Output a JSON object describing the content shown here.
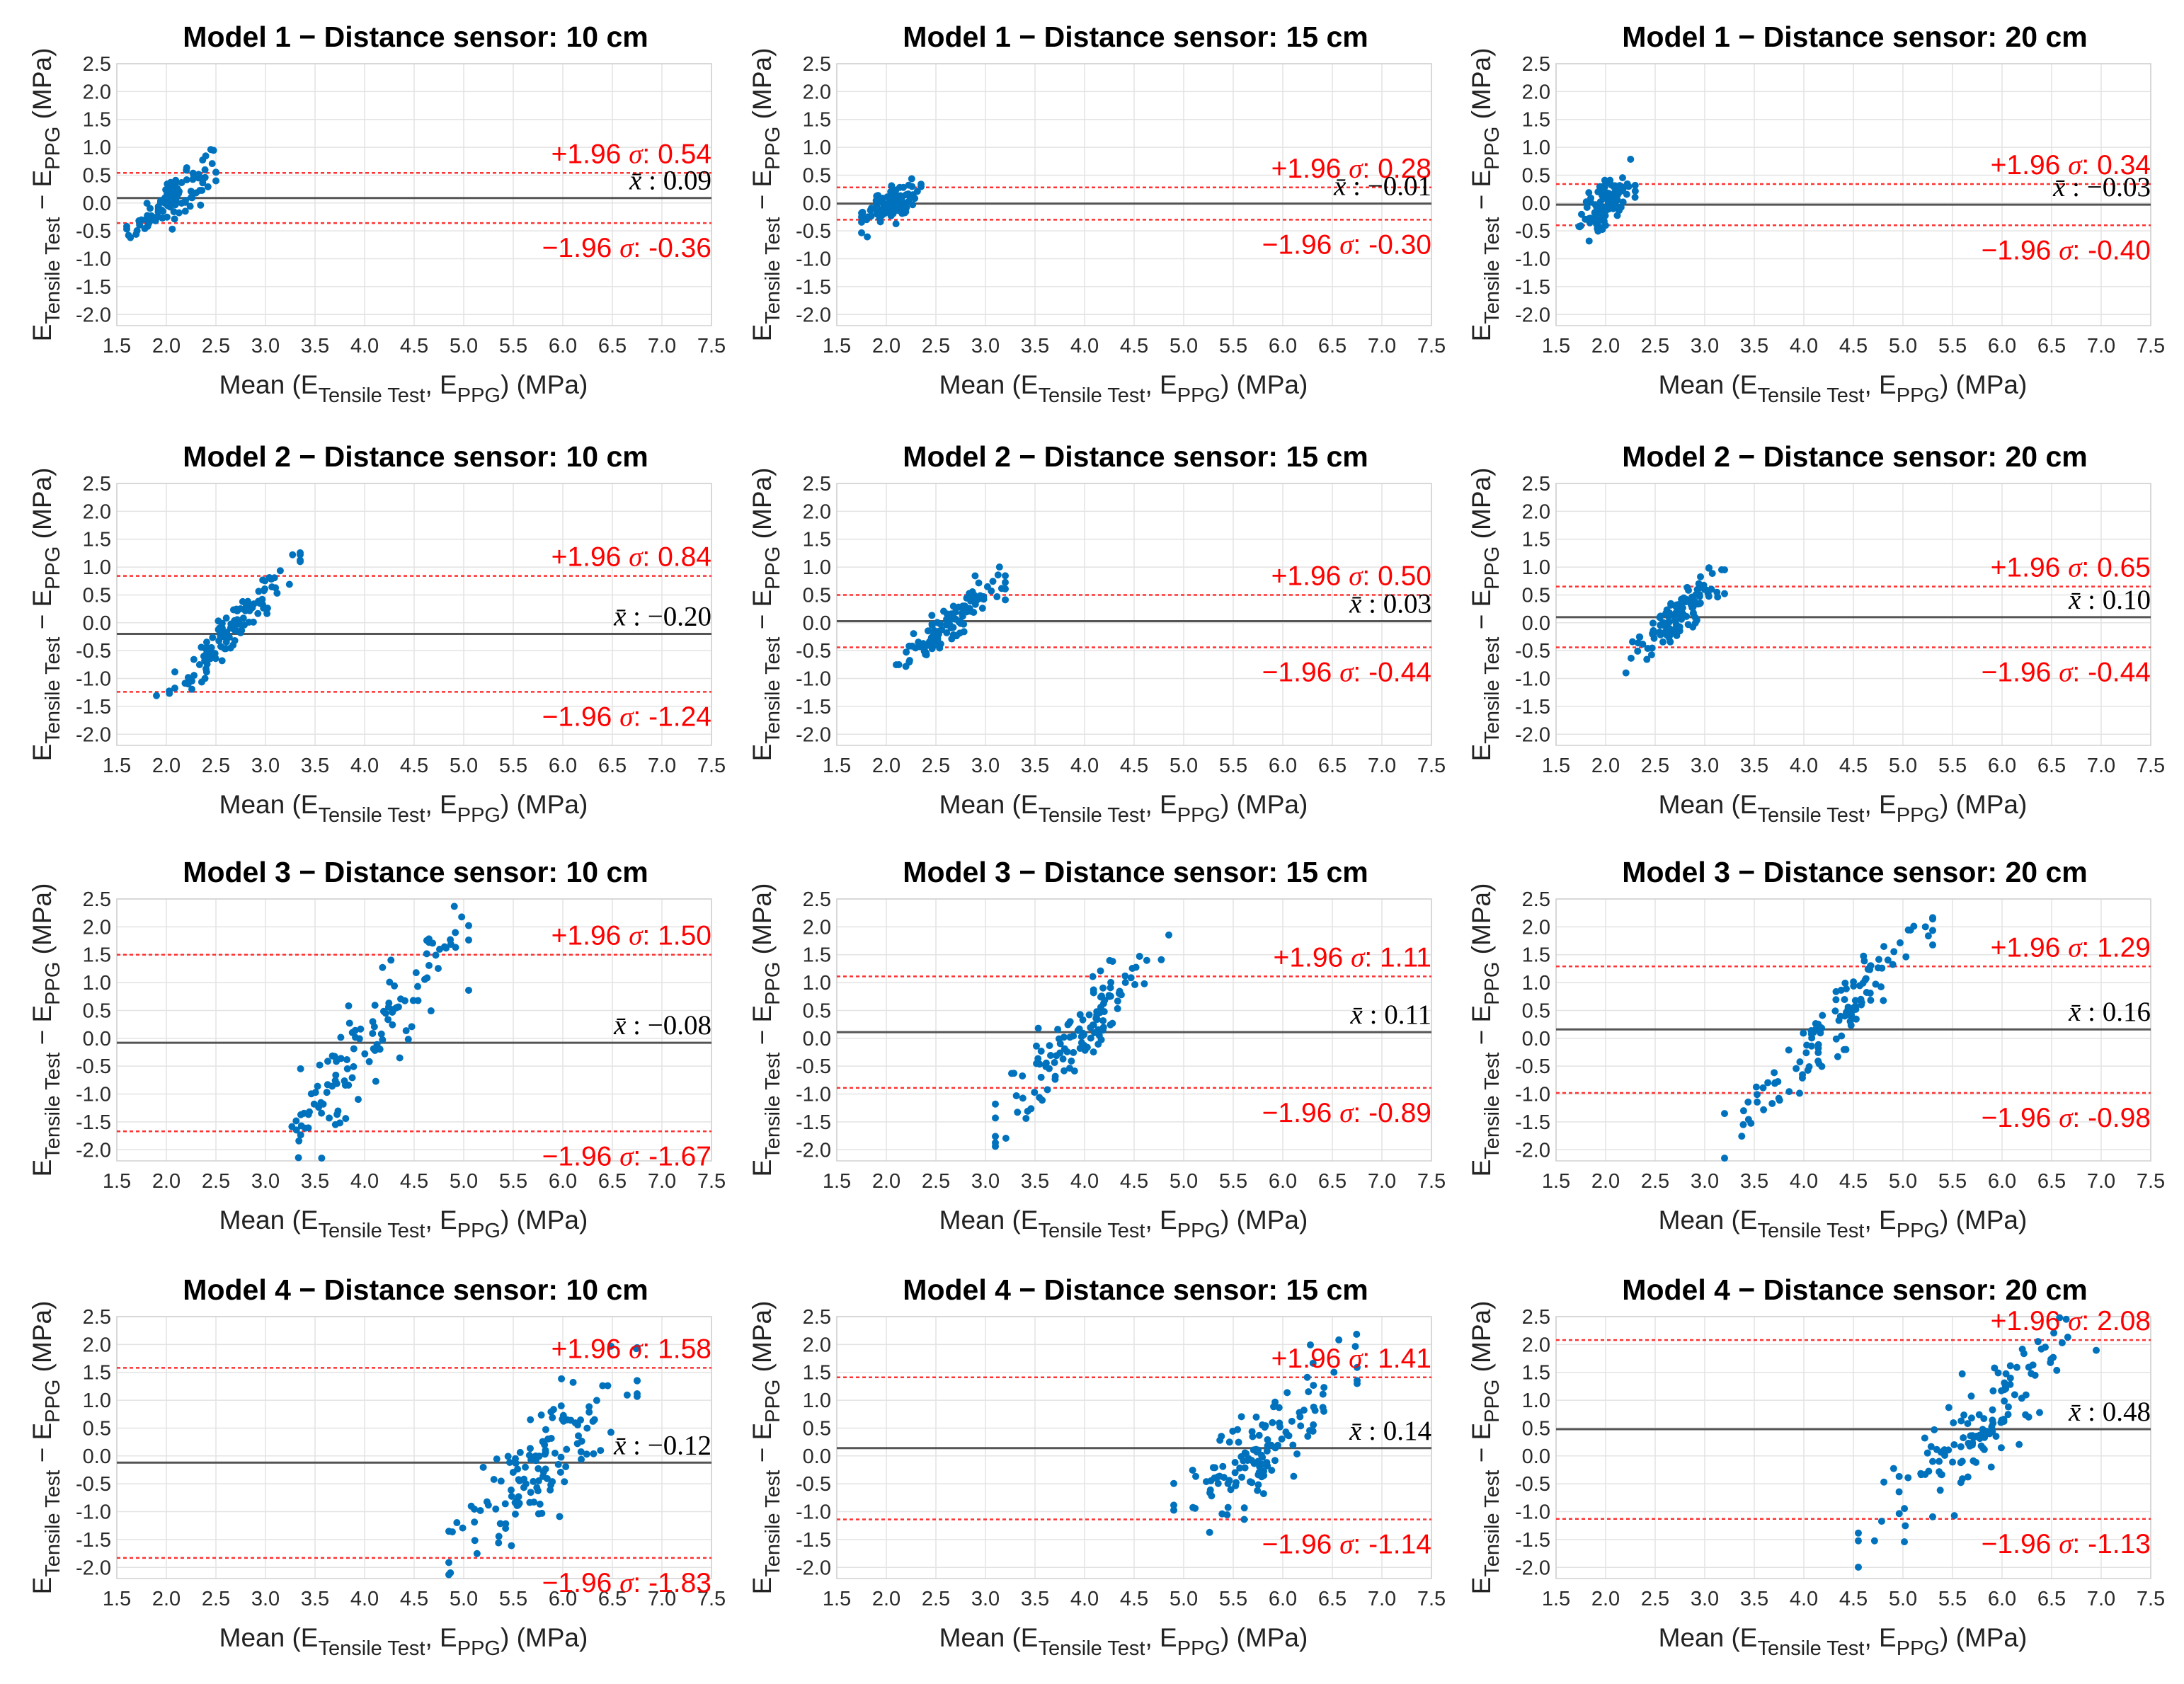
{
  "figure": {
    "x_axis_label": "Mean (E",
    "x_axis_sub1": "Tensile Test",
    "x_axis_mid": ", E",
    "x_axis_sub2": "PPG",
    "x_axis_tail": ") (MPa)",
    "y_axis_label_main": "E",
    "y_axis_sub1": "Tensile Test",
    "y_axis_mid": " − E",
    "y_axis_sub2": "PPG",
    "y_axis_tail": " (MPa)",
    "upper_loa_prefix": "+1.96 ",
    "lower_loa_prefix": "−1.96 ",
    "sigma_symbol": "σ",
    "mean_symbol": "x̄",
    "colors": {
      "points": "#0072bd",
      "loa": "#ff0000",
      "mean_line": "#555555"
    }
  },
  "chart_data": [
    {
      "type": "scatter",
      "title": "Model 1 − Distance sensor: 10 cm",
      "mean": 0.09,
      "mean_label": "0.09",
      "upper_loa": 0.54,
      "upper_label": "0.54",
      "lower_loa": -0.36,
      "lower_label": "-0.36",
      "x_range": [
        1.6,
        2.5
      ],
      "slope": 1.4,
      "sd": 0.2,
      "n": 110,
      "xlim": [
        1.5,
        7.5
      ],
      "ylim": [
        -2.2,
        2.5
      ],
      "xticks": [
        "1.5",
        "2.0",
        "2.5",
        "3.0",
        "3.5",
        "4.0",
        "4.5",
        "5.0",
        "5.5",
        "6.0",
        "6.5",
        "7.0",
        "7.5"
      ],
      "yticks": [
        "2.5",
        "2.0",
        "1.5",
        "1.0",
        "0.5",
        "0.0",
        "-0.5",
        "-1.0",
        "-1.5",
        "-2.0"
      ]
    },
    {
      "type": "scatter",
      "title": "Model 1 − Distance sensor: 15 cm",
      "mean": -0.01,
      "mean_label": "−0.01",
      "upper_loa": 0.28,
      "upper_label": "0.28",
      "lower_loa": -0.3,
      "lower_label": "-0.30",
      "x_range": [
        1.75,
        2.35
      ],
      "slope": 0.6,
      "sd": 0.15,
      "n": 110,
      "xlim": [
        1.5,
        7.5
      ],
      "ylim": [
        -2.2,
        2.5
      ],
      "xticks": [
        "1.5",
        "2.0",
        "2.5",
        "3.0",
        "3.5",
        "4.0",
        "4.5",
        "5.0",
        "5.5",
        "6.0",
        "6.5",
        "7.0",
        "7.5"
      ],
      "yticks": [
        "2.5",
        "2.0",
        "1.5",
        "1.0",
        "0.5",
        "0.0",
        "-0.5",
        "-1.0",
        "-1.5",
        "-2.0"
      ]
    },
    {
      "type": "scatter",
      "title": "Model 1 − Distance sensor: 20 cm",
      "mean": -0.03,
      "mean_label": "−0.03",
      "upper_loa": 0.34,
      "upper_label": "0.34",
      "lower_loa": -0.4,
      "lower_label": "-0.40",
      "x_range": [
        1.7,
        2.3
      ],
      "slope": 1.0,
      "sd": 0.22,
      "n": 110,
      "xlim": [
        1.5,
        7.5
      ],
      "ylim": [
        -2.2,
        2.5
      ],
      "xticks": [
        "1.5",
        "2.0",
        "2.5",
        "3.0",
        "3.5",
        "4.0",
        "4.5",
        "5.0",
        "5.5",
        "6.0",
        "6.5",
        "7.0",
        "7.5"
      ],
      "yticks": [
        "2.5",
        "2.0",
        "1.5",
        "1.0",
        "0.5",
        "0.0",
        "-0.5",
        "-1.0",
        "-1.5",
        "-2.0"
      ]
    },
    {
      "type": "scatter",
      "title": "Model 2 − Distance sensor: 10 cm",
      "mean": -0.2,
      "mean_label": "−0.20",
      "upper_loa": 0.84,
      "upper_label": "0.84",
      "lower_loa": -1.24,
      "lower_label": "-1.24",
      "x_range": [
        1.9,
        3.35
      ],
      "slope": 1.8,
      "sd": 0.2,
      "n": 120,
      "xlim": [
        1.5,
        7.5
      ],
      "ylim": [
        -2.2,
        2.5
      ],
      "xticks": [
        "1.5",
        "2.0",
        "2.5",
        "3.0",
        "3.5",
        "4.0",
        "4.5",
        "5.0",
        "5.5",
        "6.0",
        "6.5",
        "7.0",
        "7.5"
      ],
      "yticks": [
        "2.5",
        "2.0",
        "1.5",
        "1.0",
        "0.5",
        "0.0",
        "-0.5",
        "-1.0",
        "-1.5",
        "-2.0"
      ]
    },
    {
      "type": "scatter",
      "title": "Model 2 − Distance sensor: 15 cm",
      "mean": 0.03,
      "mean_label": "0.03",
      "upper_loa": 0.5,
      "upper_label": "0.50",
      "lower_loa": -0.44,
      "lower_label": "-0.44",
      "x_range": [
        2.1,
        3.2
      ],
      "slope": 1.4,
      "sd": 0.18,
      "n": 120,
      "xlim": [
        1.5,
        7.5
      ],
      "ylim": [
        -2.2,
        2.5
      ],
      "xticks": [
        "1.5",
        "2.0",
        "2.5",
        "3.0",
        "3.5",
        "4.0",
        "4.5",
        "5.0",
        "5.5",
        "6.0",
        "6.5",
        "7.0",
        "7.5"
      ],
      "yticks": [
        "2.5",
        "2.0",
        "1.5",
        "1.0",
        "0.5",
        "0.0",
        "-0.5",
        "-1.0",
        "-1.5",
        "-2.0"
      ]
    },
    {
      "type": "scatter",
      "title": "Model 2 − Distance sensor: 20 cm",
      "mean": 0.1,
      "mean_label": "0.10",
      "upper_loa": 0.65,
      "upper_label": "0.65",
      "lower_loa": -0.44,
      "lower_label": "-0.44",
      "x_range": [
        2.2,
        3.2
      ],
      "slope": 1.6,
      "sd": 0.2,
      "n": 120,
      "xlim": [
        1.5,
        7.5
      ],
      "ylim": [
        -2.2,
        2.5
      ],
      "xticks": [
        "1.5",
        "2.0",
        "2.5",
        "3.0",
        "3.5",
        "4.0",
        "4.5",
        "5.0",
        "5.5",
        "6.0",
        "6.5",
        "7.0",
        "7.5"
      ],
      "yticks": [
        "2.5",
        "2.0",
        "1.5",
        "1.0",
        "0.5",
        "0.0",
        "-0.5",
        "-1.0",
        "-1.5",
        "-2.0"
      ]
    },
    {
      "type": "scatter",
      "title": "Model 3 − Distance sensor: 10 cm",
      "mean": -0.08,
      "mean_label": "−0.08",
      "upper_loa": 1.5,
      "upper_label": "1.50",
      "lower_loa": -1.67,
      "lower_label": "-1.67",
      "x_range": [
        3.0,
        5.05
      ],
      "slope": 2.0,
      "sd": 0.4,
      "n": 120,
      "xlim": [
        1.5,
        7.5
      ],
      "ylim": [
        -2.2,
        2.5
      ],
      "xticks": [
        "1.5",
        "2.0",
        "2.5",
        "3.0",
        "3.5",
        "4.0",
        "4.5",
        "5.0",
        "5.5",
        "6.0",
        "6.5",
        "7.0",
        "7.5"
      ],
      "yticks": [
        "2.5",
        "2.0",
        "1.5",
        "1.0",
        "0.5",
        "0.0",
        "-0.5",
        "-1.0",
        "-1.5",
        "-2.0"
      ]
    },
    {
      "type": "scatter",
      "title": "Model 3 − Distance sensor: 15 cm",
      "mean": 0.11,
      "mean_label": "0.11",
      "upper_loa": 1.11,
      "upper_label": "1.11",
      "lower_loa": -0.89,
      "lower_label": "-0.89",
      "x_range": [
        3.1,
        4.85
      ],
      "slope": 1.8,
      "sd": 0.35,
      "n": 120,
      "xlim": [
        1.5,
        7.5
      ],
      "ylim": [
        -2.2,
        2.5
      ],
      "xticks": [
        "1.5",
        "2.0",
        "2.5",
        "3.0",
        "3.5",
        "4.0",
        "4.5",
        "5.0",
        "5.5",
        "6.0",
        "6.5",
        "7.0",
        "7.5"
      ],
      "yticks": [
        "2.5",
        "2.0",
        "1.5",
        "1.0",
        "0.5",
        "0.0",
        "-0.5",
        "-1.0",
        "-1.5",
        "-2.0"
      ]
    },
    {
      "type": "scatter",
      "title": "Model 3 − Distance sensor: 20 cm",
      "mean": 0.16,
      "mean_label": "0.16",
      "upper_loa": 1.29,
      "upper_label": "1.29",
      "lower_loa": -0.98,
      "lower_label": "-0.98",
      "x_range": [
        3.2,
        5.3
      ],
      "slope": 1.8,
      "sd": 0.38,
      "n": 120,
      "xlim": [
        1.5,
        7.5
      ],
      "ylim": [
        -2.2,
        2.5
      ],
      "xticks": [
        "1.5",
        "2.0",
        "2.5",
        "3.0",
        "3.5",
        "4.0",
        "4.5",
        "5.0",
        "5.5",
        "6.0",
        "6.5",
        "7.0",
        "7.5"
      ],
      "yticks": [
        "2.5",
        "2.0",
        "1.5",
        "1.0",
        "0.5",
        "0.0",
        "-0.5",
        "-1.0",
        "-1.5",
        "-2.0"
      ]
    },
    {
      "type": "scatter",
      "title": "Model 4 − Distance sensor: 10 cm",
      "mean": -0.12,
      "mean_label": "−0.12",
      "upper_loa": 1.58,
      "upper_label": "1.58",
      "lower_loa": -1.83,
      "lower_label": "-1.83",
      "x_range": [
        4.85,
        6.75
      ],
      "slope": 1.6,
      "sd": 0.45,
      "n": 130,
      "xlim": [
        1.5,
        7.5
      ],
      "ylim": [
        -2.2,
        2.5
      ],
      "xticks": [
        "1.5",
        "2.0",
        "2.5",
        "3.0",
        "3.5",
        "4.0",
        "4.5",
        "5.0",
        "5.5",
        "6.0",
        "6.5",
        "7.0",
        "7.5"
      ],
      "yticks": [
        "2.5",
        "2.0",
        "1.5",
        "1.0",
        "0.5",
        "0.0",
        "-0.5",
        "-1.0",
        "-1.5",
        "-2.0"
      ]
    },
    {
      "type": "scatter",
      "title": "Model 4 − Distance sensor: 15 cm",
      "mean": 0.14,
      "mean_label": "0.14",
      "upper_loa": 1.41,
      "upper_label": "1.41",
      "lower_loa": -1.14,
      "lower_label": "-1.14",
      "x_range": [
        4.9,
        6.75
      ],
      "slope": 1.5,
      "sd": 0.45,
      "n": 130,
      "xlim": [
        1.5,
        7.5
      ],
      "ylim": [
        -2.2,
        2.5
      ],
      "xticks": [
        "1.5",
        "2.0",
        "2.5",
        "3.0",
        "3.5",
        "4.0",
        "4.5",
        "5.0",
        "5.5",
        "6.0",
        "6.5",
        "7.0",
        "7.5"
      ],
      "yticks": [
        "2.5",
        "2.0",
        "1.5",
        "1.0",
        "0.5",
        "0.0",
        "-0.5",
        "-1.0",
        "-1.5",
        "-2.0"
      ]
    },
    {
      "type": "scatter",
      "title": "Model 4 − Distance sensor: 20 cm",
      "mean": 0.48,
      "mean_label": "0.48",
      "upper_loa": 2.08,
      "upper_label": "2.08",
      "lower_loa": -1.13,
      "lower_label": "-1.13",
      "x_range": [
        4.55,
        6.95
      ],
      "slope": 1.7,
      "sd": 0.45,
      "n": 130,
      "xlim": [
        1.5,
        7.5
      ],
      "ylim": [
        -2.2,
        2.5
      ],
      "xticks": [
        "1.5",
        "2.0",
        "2.5",
        "3.0",
        "3.5",
        "4.0",
        "4.5",
        "5.0",
        "5.5",
        "6.0",
        "6.5",
        "7.0",
        "7.5"
      ],
      "yticks": [
        "2.5",
        "2.0",
        "1.5",
        "1.0",
        "0.5",
        "0.0",
        "-0.5",
        "-1.0",
        "-1.5",
        "-2.0"
      ]
    }
  ]
}
